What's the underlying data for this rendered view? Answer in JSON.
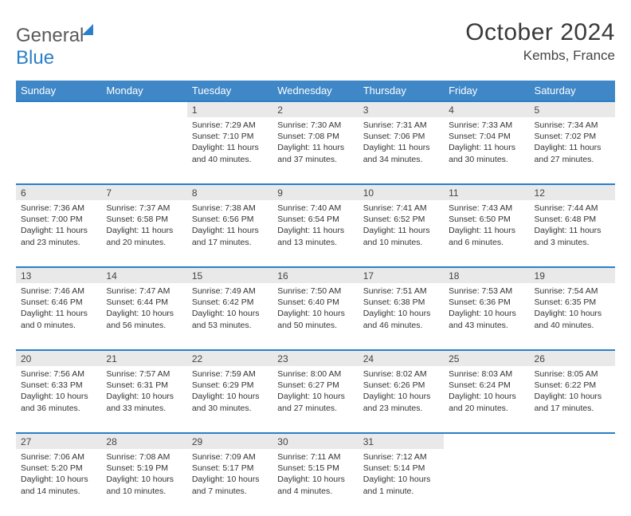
{
  "brand": {
    "part1": "General",
    "part2": "Blue"
  },
  "title": "October 2024",
  "location": "Kembs, France",
  "colors": {
    "header_bg": "#3f87c7",
    "accent_border": "#2a7fc9",
    "daynum_bg": "#e9e9e9",
    "text": "#333333",
    "logo_gray": "#5a5a5a"
  },
  "weekdays": [
    "Sunday",
    "Monday",
    "Tuesday",
    "Wednesday",
    "Thursday",
    "Friday",
    "Saturday"
  ],
  "weeks": [
    [
      null,
      null,
      {
        "n": "1",
        "sunrise": "7:29 AM",
        "sunset": "7:10 PM",
        "day_h": 11,
        "day_m": 40
      },
      {
        "n": "2",
        "sunrise": "7:30 AM",
        "sunset": "7:08 PM",
        "day_h": 11,
        "day_m": 37
      },
      {
        "n": "3",
        "sunrise": "7:31 AM",
        "sunset": "7:06 PM",
        "day_h": 11,
        "day_m": 34
      },
      {
        "n": "4",
        "sunrise": "7:33 AM",
        "sunset": "7:04 PM",
        "day_h": 11,
        "day_m": 30
      },
      {
        "n": "5",
        "sunrise": "7:34 AM",
        "sunset": "7:02 PM",
        "day_h": 11,
        "day_m": 27
      }
    ],
    [
      {
        "n": "6",
        "sunrise": "7:36 AM",
        "sunset": "7:00 PM",
        "day_h": 11,
        "day_m": 23
      },
      {
        "n": "7",
        "sunrise": "7:37 AM",
        "sunset": "6:58 PM",
        "day_h": 11,
        "day_m": 20
      },
      {
        "n": "8",
        "sunrise": "7:38 AM",
        "sunset": "6:56 PM",
        "day_h": 11,
        "day_m": 17
      },
      {
        "n": "9",
        "sunrise": "7:40 AM",
        "sunset": "6:54 PM",
        "day_h": 11,
        "day_m": 13
      },
      {
        "n": "10",
        "sunrise": "7:41 AM",
        "sunset": "6:52 PM",
        "day_h": 11,
        "day_m": 10
      },
      {
        "n": "11",
        "sunrise": "7:43 AM",
        "sunset": "6:50 PM",
        "day_h": 11,
        "day_m": 6
      },
      {
        "n": "12",
        "sunrise": "7:44 AM",
        "sunset": "6:48 PM",
        "day_h": 11,
        "day_m": 3
      }
    ],
    [
      {
        "n": "13",
        "sunrise": "7:46 AM",
        "sunset": "6:46 PM",
        "day_h": 11,
        "day_m": 0
      },
      {
        "n": "14",
        "sunrise": "7:47 AM",
        "sunset": "6:44 PM",
        "day_h": 10,
        "day_m": 56
      },
      {
        "n": "15",
        "sunrise": "7:49 AM",
        "sunset": "6:42 PM",
        "day_h": 10,
        "day_m": 53
      },
      {
        "n": "16",
        "sunrise": "7:50 AM",
        "sunset": "6:40 PM",
        "day_h": 10,
        "day_m": 50
      },
      {
        "n": "17",
        "sunrise": "7:51 AM",
        "sunset": "6:38 PM",
        "day_h": 10,
        "day_m": 46
      },
      {
        "n": "18",
        "sunrise": "7:53 AM",
        "sunset": "6:36 PM",
        "day_h": 10,
        "day_m": 43
      },
      {
        "n": "19",
        "sunrise": "7:54 AM",
        "sunset": "6:35 PM",
        "day_h": 10,
        "day_m": 40
      }
    ],
    [
      {
        "n": "20",
        "sunrise": "7:56 AM",
        "sunset": "6:33 PM",
        "day_h": 10,
        "day_m": 36
      },
      {
        "n": "21",
        "sunrise": "7:57 AM",
        "sunset": "6:31 PM",
        "day_h": 10,
        "day_m": 33
      },
      {
        "n": "22",
        "sunrise": "7:59 AM",
        "sunset": "6:29 PM",
        "day_h": 10,
        "day_m": 30
      },
      {
        "n": "23",
        "sunrise": "8:00 AM",
        "sunset": "6:27 PM",
        "day_h": 10,
        "day_m": 27
      },
      {
        "n": "24",
        "sunrise": "8:02 AM",
        "sunset": "6:26 PM",
        "day_h": 10,
        "day_m": 23
      },
      {
        "n": "25",
        "sunrise": "8:03 AM",
        "sunset": "6:24 PM",
        "day_h": 10,
        "day_m": 20
      },
      {
        "n": "26",
        "sunrise": "8:05 AM",
        "sunset": "6:22 PM",
        "day_h": 10,
        "day_m": 17
      }
    ],
    [
      {
        "n": "27",
        "sunrise": "7:06 AM",
        "sunset": "5:20 PM",
        "day_h": 10,
        "day_m": 14
      },
      {
        "n": "28",
        "sunrise": "7:08 AM",
        "sunset": "5:19 PM",
        "day_h": 10,
        "day_m": 10
      },
      {
        "n": "29",
        "sunrise": "7:09 AM",
        "sunset": "5:17 PM",
        "day_h": 10,
        "day_m": 7
      },
      {
        "n": "30",
        "sunrise": "7:11 AM",
        "sunset": "5:15 PM",
        "day_h": 10,
        "day_m": 4
      },
      {
        "n": "31",
        "sunrise": "7:12 AM",
        "sunset": "5:14 PM",
        "day_h": 10,
        "day_m": 1
      },
      null,
      null
    ]
  ]
}
